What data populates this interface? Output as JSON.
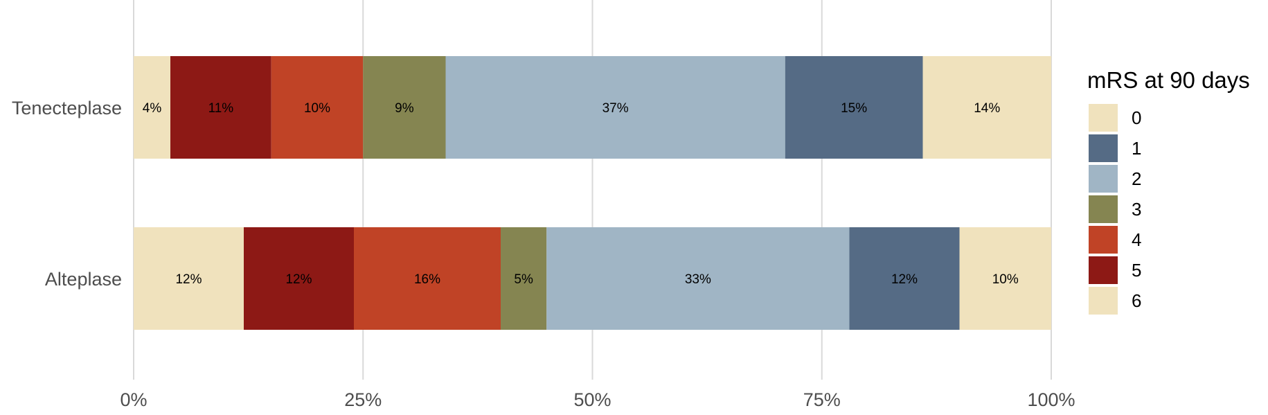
{
  "chart_data": {
    "type": "bar",
    "orientation": "horizontal",
    "stacked": true,
    "categories": [
      "Tenecteplase",
      "Alteplase"
    ],
    "x_ticks": [
      "0%",
      "25%",
      "50%",
      "75%",
      "100%"
    ],
    "xlim": [
      0,
      100
    ],
    "grid": "vertical",
    "legend": {
      "title": "mRS at 90 days",
      "position": "right",
      "entries": [
        "0",
        "1",
        "2",
        "3",
        "4",
        "5",
        "6"
      ]
    },
    "segment_order": [
      "6",
      "5",
      "4",
      "3",
      "2",
      "1",
      "0"
    ],
    "colors": {
      "0": "#f0e2bd",
      "1": "#556b85",
      "2": "#a0b5c5",
      "3": "#858551",
      "4": "#c04326",
      "5": "#8d1915",
      "6": "#f0e2bd"
    },
    "series": [
      {
        "name": "0",
        "values": [
          14,
          10
        ],
        "labels": [
          "14%",
          "10%"
        ]
      },
      {
        "name": "1",
        "values": [
          15,
          12
        ],
        "labels": [
          "15%",
          "12%"
        ]
      },
      {
        "name": "2",
        "values": [
          37,
          33
        ],
        "labels": [
          "37%",
          "33%"
        ]
      },
      {
        "name": "3",
        "values": [
          9,
          5
        ],
        "labels": [
          "9%",
          "5%"
        ]
      },
      {
        "name": "4",
        "values": [
          10,
          16
        ],
        "labels": [
          "10%",
          "16%"
        ]
      },
      {
        "name": "5",
        "values": [
          11,
          12
        ],
        "labels": [
          "11%",
          "12%"
        ]
      },
      {
        "name": "6",
        "values": [
          4,
          12
        ],
        "labels": [
          "4%",
          "12%"
        ]
      }
    ]
  }
}
